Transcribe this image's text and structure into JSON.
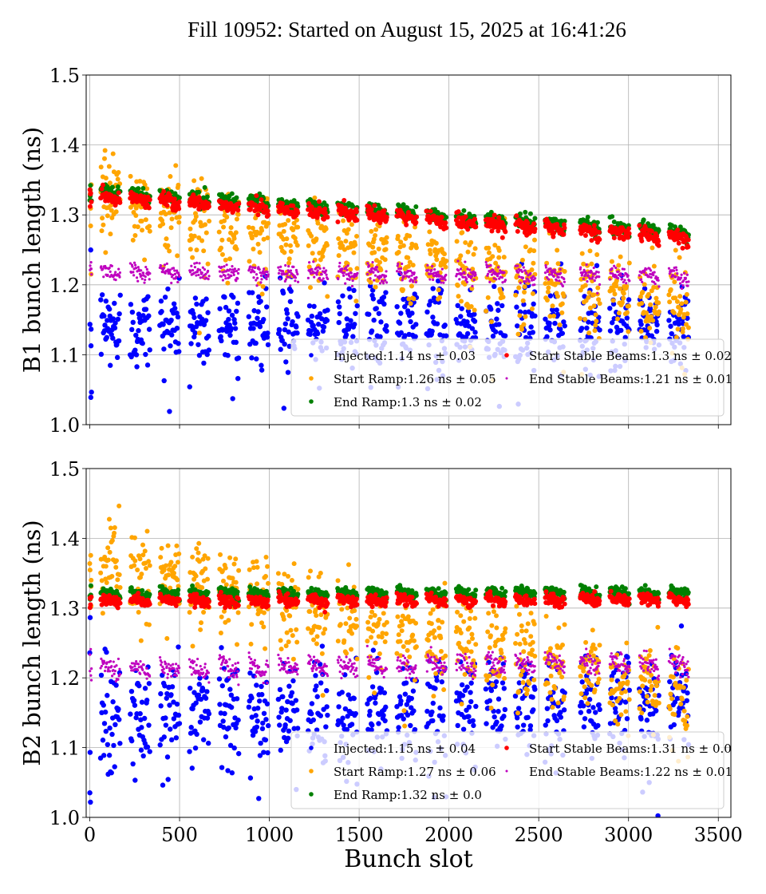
{
  "chart_data": [
    {
      "type": "scatter",
      "title": "Fill 10952: Started on August 15, 2025 at 16:41:26",
      "xlabel": "",
      "ylabel": "B1 bunch length (ns)",
      "xlim": [
        -20,
        3570
      ],
      "ylim": [
        1.0,
        1.5
      ],
      "xticks": [
        0,
        500,
        1000,
        1500,
        2000,
        2500,
        3000,
        3500
      ],
      "xtick_labels_shown": false,
      "yticks": [
        "1.0",
        "1.1",
        "1.2",
        "1.3",
        "1.4",
        "1.5"
      ],
      "grid": true,
      "legend_placement": "lower-right",
      "train_start_slots": [
        60,
        225,
        390,
        555,
        720,
        885,
        1050,
        1215,
        1380,
        1545,
        1710,
        1875,
        2040,
        2205,
        2370,
        2535,
        2730,
        2895,
        3060,
        3225
      ],
      "train_length_slots": 110,
      "series": [
        {
          "name": "Injected:1.14 ns ± 0.03",
          "color": "#0000ff",
          "mean_first_train": 1.14,
          "mean_last_train": 1.14,
          "std": 0.03
        },
        {
          "name": "Start Ramp:1.26 ns ± 0.05",
          "color": "#ffa500",
          "mean_first_train": 1.32,
          "mean_last_train": 1.17,
          "std": 0.03
        },
        {
          "name": "End Ramp:1.3 ns ± 0.02",
          "color": "#008000",
          "mean_first_train": 1.332,
          "mean_last_train": 1.275,
          "std": 0.005
        },
        {
          "name": "Start Stable Beams:1.3 ns ± 0.02",
          "color": "#ff0000",
          "mean_first_train": 1.325,
          "mean_last_train": 1.268,
          "std": 0.005
        },
        {
          "name": "End Stable Beams:1.21 ns ± 0.01",
          "color": "#bf00bf",
          "mean_first_train": 1.218,
          "mean_last_train": 1.212,
          "std": 0.006
        }
      ]
    },
    {
      "type": "scatter",
      "xlabel": "Bunch slot",
      "ylabel": "B2 bunch length (ns)",
      "xlim": [
        -20,
        3570
      ],
      "ylim": [
        1.0,
        1.5
      ],
      "xticks": [
        0,
        500,
        1000,
        1500,
        2000,
        2500,
        3000,
        3500
      ],
      "xtick_labels": [
        "0",
        "500",
        "1000",
        "1500",
        "2000",
        "2500",
        "3000",
        "3500"
      ],
      "yticks": [
        "1.0",
        "1.1",
        "1.2",
        "1.3",
        "1.4",
        "1.5"
      ],
      "grid": true,
      "legend_placement": "lower-right",
      "train_start_slots": [
        60,
        225,
        390,
        555,
        720,
        885,
        1050,
        1215,
        1380,
        1545,
        1710,
        1875,
        2040,
        2205,
        2370,
        2535,
        2730,
        2895,
        3060,
        3225
      ],
      "train_length_slots": 110,
      "series": [
        {
          "name": "Injected:1.15 ns ± 0.04",
          "color": "#0000ff",
          "mean_first_train": 1.15,
          "mean_last_train": 1.16,
          "std": 0.035
        },
        {
          "name": "Start Ramp:1.27 ns ± 0.06",
          "color": "#ffa500",
          "mean_first_train": 1.365,
          "mean_last_train": 1.18,
          "std": 0.03
        },
        {
          "name": "End Ramp:1.32 ns ± 0.0",
          "color": "#008000",
          "mean_first_train": 1.32,
          "mean_last_train": 1.322,
          "std": 0.004
        },
        {
          "name": "Start Stable Beams:1.31 ns ± 0.0",
          "color": "#ff0000",
          "mean_first_train": 1.31,
          "mean_last_train": 1.312,
          "std": 0.004
        },
        {
          "name": "End Stable Beams:1.22 ns ± 0.01",
          "color": "#bf00bf",
          "mean_first_train": 1.213,
          "mean_last_train": 1.222,
          "std": 0.007
        }
      ]
    }
  ]
}
